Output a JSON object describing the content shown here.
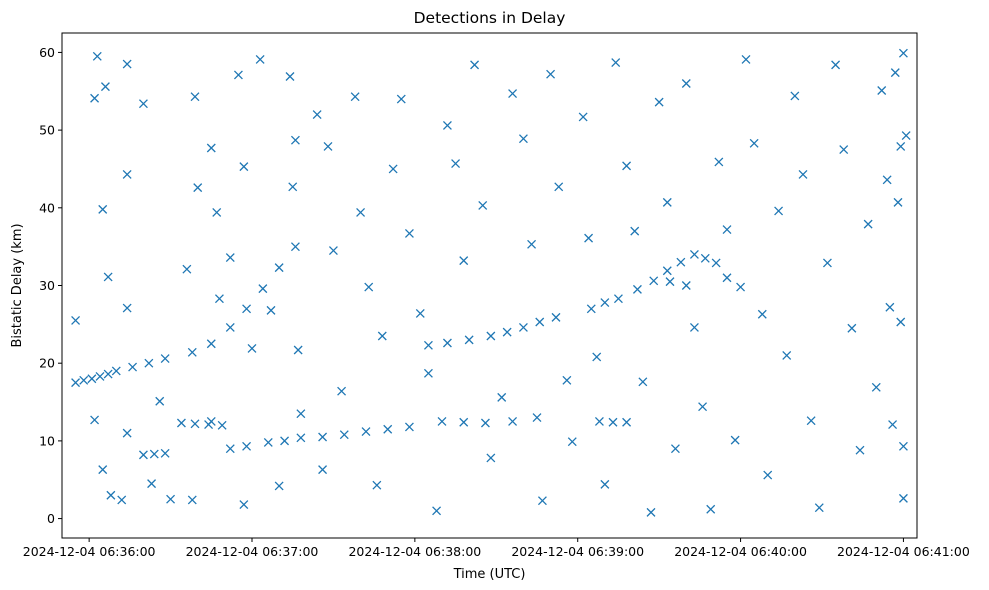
{
  "chart_data": {
    "type": "scatter",
    "title": "Detections in Delay",
    "xlabel": "Time (UTC)",
    "ylabel": "Bistatic Delay (km)",
    "x_type": "datetime",
    "xlim": [
      "2024-12-04 06:35:50",
      "2024-12-04 06:41:05"
    ],
    "ylim": [
      -2.5,
      62.5
    ],
    "xticks": [
      {
        "value": "2024-12-04 06:36:00",
        "label": "2024-12-04 06:36:00"
      },
      {
        "value": "2024-12-04 06:37:00",
        "label": "2024-12-04 06:37:00"
      },
      {
        "value": "2024-12-04 06:38:00",
        "label": "2024-12-04 06:38:00"
      },
      {
        "value": "2024-12-04 06:39:00",
        "label": "2024-12-04 06:39:00"
      },
      {
        "value": "2024-12-04 06:40:00",
        "label": "2024-12-04 06:40:00"
      },
      {
        "value": "2024-12-04 06:41:00",
        "label": "2024-12-04 06:41:00"
      }
    ],
    "yticks": [
      0,
      10,
      20,
      30,
      40,
      50,
      60
    ],
    "grid": false,
    "marker": "x",
    "color": "#1f77b4",
    "series": [
      {
        "points": [
          [
            "2024-12-04 06:35:55",
            17.5
          ],
          [
            "2024-12-04 06:35:58",
            17.8
          ],
          [
            "2024-12-04 06:36:01",
            18.0
          ],
          [
            "2024-12-04 06:36:04",
            18.3
          ],
          [
            "2024-12-04 06:36:07",
            18.6
          ],
          [
            "2024-12-04 06:36:10",
            19.0
          ],
          [
            "2024-12-04 06:36:16",
            19.5
          ],
          [
            "2024-12-04 06:36:22",
            20.0
          ],
          [
            "2024-12-04 06:36:28",
            20.6
          ],
          [
            "2024-12-04 06:36:38",
            21.4
          ],
          [
            "2024-12-04 06:36:45",
            22.5
          ],
          [
            "2024-12-04 06:36:52",
            24.6
          ],
          [
            "2024-12-04 06:36:58",
            27.0
          ],
          [
            "2024-12-04 06:37:04",
            29.6
          ],
          [
            "2024-12-04 06:37:10",
            32.3
          ],
          [
            "2024-12-04 06:37:16",
            35.0
          ],
          [
            "2024-12-04 06:36:20",
            8.2
          ],
          [
            "2024-12-04 06:36:24",
            8.3
          ],
          [
            "2024-12-04 06:36:28",
            8.4
          ],
          [
            "2024-12-04 06:36:34",
            12.3
          ],
          [
            "2024-12-04 06:36:39",
            12.2
          ],
          [
            "2024-12-04 06:36:44",
            12.1
          ],
          [
            "2024-12-04 06:36:49",
            12.0
          ],
          [
            "2024-12-04 06:36:52",
            9.0
          ],
          [
            "2024-12-04 06:36:58",
            9.3
          ],
          [
            "2024-12-04 06:37:06",
            9.8
          ],
          [
            "2024-12-04 06:37:12",
            10.0
          ],
          [
            "2024-12-04 06:37:18",
            10.4
          ],
          [
            "2024-12-04 06:37:26",
            10.5
          ],
          [
            "2024-12-04 06:37:34",
            10.8
          ],
          [
            "2024-12-04 06:37:42",
            11.2
          ],
          [
            "2024-12-04 06:37:50",
            11.5
          ],
          [
            "2024-12-04 06:37:58",
            11.8
          ],
          [
            "2024-12-04 06:38:05",
            22.3
          ],
          [
            "2024-12-04 06:38:12",
            22.6
          ],
          [
            "2024-12-04 06:38:20",
            23.0
          ],
          [
            "2024-12-04 06:38:28",
            23.5
          ],
          [
            "2024-12-04 06:38:34",
            24.0
          ],
          [
            "2024-12-04 06:38:40",
            24.6
          ],
          [
            "2024-12-04 06:38:46",
            25.3
          ],
          [
            "2024-12-04 06:38:52",
            25.9
          ],
          [
            "2024-12-04 06:38:10",
            12.5
          ],
          [
            "2024-12-04 06:38:18",
            12.4
          ],
          [
            "2024-12-04 06:38:26",
            12.3
          ],
          [
            "2024-12-04 06:38:36",
            12.5
          ],
          [
            "2024-12-04 06:38:45",
            13.0
          ],
          [
            "2024-12-04 06:39:08",
            12.5
          ],
          [
            "2024-12-04 06:39:13",
            12.4
          ],
          [
            "2024-12-04 06:39:18",
            12.4
          ],
          [
            "2024-12-04 06:39:05",
            27.0
          ],
          [
            "2024-12-04 06:39:10",
            27.8
          ],
          [
            "2024-12-04 06:39:15",
            28.3
          ],
          [
            "2024-12-04 06:39:22",
            29.5
          ],
          [
            "2024-12-04 06:39:28",
            30.6
          ],
          [
            "2024-12-04 06:39:33",
            31.9
          ],
          [
            "2024-12-04 06:39:38",
            33.0
          ],
          [
            "2024-12-04 06:39:43",
            34.0
          ],
          [
            "2024-12-04 06:39:47",
            33.5
          ],
          [
            "2024-12-04 06:39:51",
            32.9
          ],
          [
            "2024-12-04 06:39:55",
            31.0
          ],
          [
            "2024-12-04 06:40:00",
            29.8
          ],
          [
            "2024-12-04 06:39:40",
            30.0
          ],
          [
            "2024-12-04 06:39:34",
            30.5
          ],
          [
            "2024-12-04 06:36:03",
            59.5
          ],
          [
            "2024-12-04 06:36:06",
            55.6
          ],
          [
            "2024-12-04 06:36:02",
            54.1
          ],
          [
            "2024-12-04 06:36:05",
            39.8
          ],
          [
            "2024-12-04 06:36:07",
            31.1
          ],
          [
            "2024-12-04 06:35:55",
            25.5
          ],
          [
            "2024-12-04 06:36:02",
            12.7
          ],
          [
            "2024-12-04 06:36:05",
            6.3
          ],
          [
            "2024-12-04 06:36:08",
            3.0
          ],
          [
            "2024-12-04 06:36:12",
            2.4
          ],
          [
            "2024-12-04 06:36:14",
            58.5
          ],
          [
            "2024-12-04 06:36:20",
            53.4
          ],
          [
            "2024-12-04 06:36:14",
            44.3
          ],
          [
            "2024-12-04 06:36:14",
            27.1
          ],
          [
            "2024-12-04 06:36:14",
            11.0
          ],
          [
            "2024-12-04 06:36:23",
            4.5
          ],
          [
            "2024-12-04 06:36:30",
            2.5
          ],
          [
            "2024-12-04 06:36:26",
            15.1
          ],
          [
            "2024-12-04 06:36:39",
            54.3
          ],
          [
            "2024-12-04 06:36:40",
            42.6
          ],
          [
            "2024-12-04 06:36:36",
            32.1
          ],
          [
            "2024-12-04 06:36:45",
            47.7
          ],
          [
            "2024-12-04 06:36:47",
            39.4
          ],
          [
            "2024-12-04 06:36:48",
            28.3
          ],
          [
            "2024-12-04 06:36:38",
            2.4
          ],
          [
            "2024-12-04 06:36:45",
            12.5
          ],
          [
            "2024-12-04 06:36:55",
            57.1
          ],
          [
            "2024-12-04 06:36:57",
            45.3
          ],
          [
            "2024-12-04 06:36:52",
            33.6
          ],
          [
            "2024-12-04 06:37:00",
            21.9
          ],
          [
            "2024-12-04 06:36:57",
            1.8
          ],
          [
            "2024-12-04 06:37:03",
            59.1
          ],
          [
            "2024-12-04 06:37:07",
            26.8
          ],
          [
            "2024-12-04 06:37:10",
            4.2
          ],
          [
            "2024-12-04 06:37:14",
            56.9
          ],
          [
            "2024-12-04 06:37:16",
            48.7
          ],
          [
            "2024-12-04 06:37:15",
            42.7
          ],
          [
            "2024-12-04 06:37:17",
            21.7
          ],
          [
            "2024-12-04 06:37:18",
            13.5
          ],
          [
            "2024-12-04 06:37:24",
            52.0
          ],
          [
            "2024-12-04 06:37:26",
            6.3
          ],
          [
            "2024-12-04 06:37:28",
            47.9
          ],
          [
            "2024-12-04 06:37:30",
            34.5
          ],
          [
            "2024-12-04 06:37:33",
            16.4
          ],
          [
            "2024-12-04 06:37:38",
            54.3
          ],
          [
            "2024-12-04 06:37:40",
            39.4
          ],
          [
            "2024-12-04 06:37:43",
            29.8
          ],
          [
            "2024-12-04 06:37:46",
            4.3
          ],
          [
            "2024-12-04 06:37:48",
            23.5
          ],
          [
            "2024-12-04 06:37:52",
            45.0
          ],
          [
            "2024-12-04 06:37:55",
            54.0
          ],
          [
            "2024-12-04 06:37:58",
            36.7
          ],
          [
            "2024-12-04 06:38:02",
            26.4
          ],
          [
            "2024-12-04 06:38:05",
            18.7
          ],
          [
            "2024-12-04 06:38:08",
            1.0
          ],
          [
            "2024-12-04 06:38:12",
            50.6
          ],
          [
            "2024-12-04 06:38:15",
            45.7
          ],
          [
            "2024-12-04 06:38:18",
            33.2
          ],
          [
            "2024-12-04 06:38:22",
            58.4
          ],
          [
            "2024-12-04 06:38:25",
            40.3
          ],
          [
            "2024-12-04 06:38:28",
            7.8
          ],
          [
            "2024-12-04 06:38:32",
            15.6
          ],
          [
            "2024-12-04 06:38:36",
            54.7
          ],
          [
            "2024-12-04 06:38:40",
            48.9
          ],
          [
            "2024-12-04 06:38:43",
            35.3
          ],
          [
            "2024-12-04 06:38:47",
            2.3
          ],
          [
            "2024-12-04 06:38:50",
            57.2
          ],
          [
            "2024-12-04 06:38:53",
            42.7
          ],
          [
            "2024-12-04 06:38:56",
            17.8
          ],
          [
            "2024-12-04 06:38:58",
            9.9
          ],
          [
            "2024-12-04 06:39:02",
            51.7
          ],
          [
            "2024-12-04 06:39:04",
            36.1
          ],
          [
            "2024-12-04 06:39:07",
            20.8
          ],
          [
            "2024-12-04 06:39:10",
            4.4
          ],
          [
            "2024-12-04 06:39:14",
            58.7
          ],
          [
            "2024-12-04 06:39:18",
            45.4
          ],
          [
            "2024-12-04 06:39:21",
            37.0
          ],
          [
            "2024-12-04 06:39:24",
            17.6
          ],
          [
            "2024-12-04 06:39:27",
            0.8
          ],
          [
            "2024-12-04 06:39:30",
            53.6
          ],
          [
            "2024-12-04 06:39:33",
            40.7
          ],
          [
            "2024-12-04 06:39:36",
            9.0
          ],
          [
            "2024-12-04 06:39:40",
            56.0
          ],
          [
            "2024-12-04 06:39:43",
            24.6
          ],
          [
            "2024-12-04 06:39:46",
            14.4
          ],
          [
            "2024-12-04 06:39:49",
            1.2
          ],
          [
            "2024-12-04 06:39:52",
            45.9
          ],
          [
            "2024-12-04 06:39:55",
            37.2
          ],
          [
            "2024-12-04 06:39:58",
            10.1
          ],
          [
            "2024-12-04 06:40:02",
            59.1
          ],
          [
            "2024-12-04 06:40:05",
            48.3
          ],
          [
            "2024-12-04 06:40:08",
            26.3
          ],
          [
            "2024-12-04 06:40:10",
            5.6
          ],
          [
            "2024-12-04 06:40:14",
            39.6
          ],
          [
            "2024-12-04 06:40:17",
            21.0
          ],
          [
            "2024-12-04 06:40:20",
            54.4
          ],
          [
            "2024-12-04 06:40:23",
            44.3
          ],
          [
            "2024-12-04 06:40:26",
            12.6
          ],
          [
            "2024-12-04 06:40:29",
            1.4
          ],
          [
            "2024-12-04 06:40:32",
            32.9
          ],
          [
            "2024-12-04 06:40:35",
            58.4
          ],
          [
            "2024-12-04 06:40:38",
            47.5
          ],
          [
            "2024-12-04 06:40:41",
            24.5
          ],
          [
            "2024-12-04 06:40:44",
            8.8
          ],
          [
            "2024-12-04 06:40:47",
            37.9
          ],
          [
            "2024-12-04 06:40:50",
            16.9
          ],
          [
            "2024-12-04 06:40:52",
            55.1
          ],
          [
            "2024-12-04 06:40:54",
            43.6
          ],
          [
            "2024-12-04 06:40:55",
            27.2
          ],
          [
            "2024-12-04 06:40:56",
            12.1
          ],
          [
            "2024-12-04 06:40:57",
            57.4
          ],
          [
            "2024-12-04 06:40:58",
            40.7
          ],
          [
            "2024-12-04 06:40:59",
            25.3
          ],
          [
            "2024-12-04 06:41:00",
            9.3
          ],
          [
            "2024-12-04 06:41:01",
            49.3
          ],
          [
            "2024-12-04 06:41:00",
            2.6
          ],
          [
            "2024-12-04 06:41:00",
            59.9
          ],
          [
            "2024-12-04 06:40:59",
            47.9
          ]
        ]
      }
    ]
  }
}
